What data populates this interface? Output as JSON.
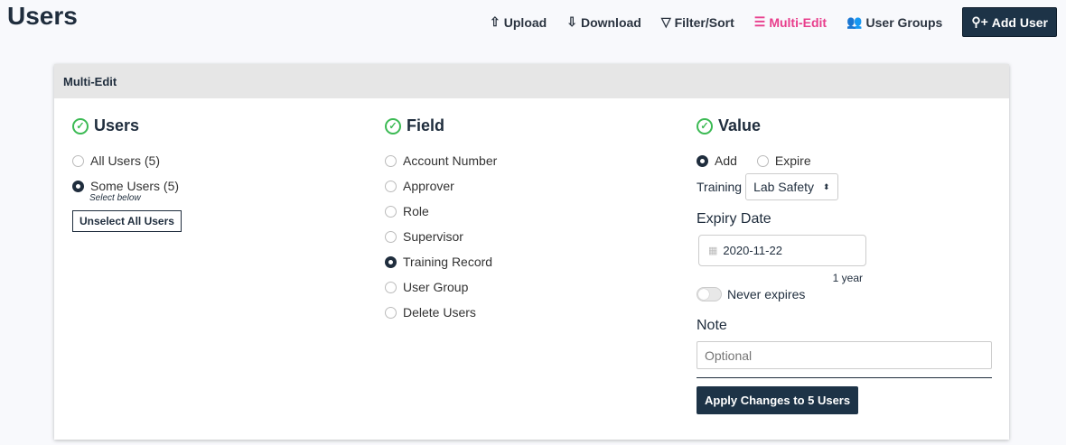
{
  "page_title": "Users",
  "toolbar": {
    "upload": "Upload",
    "download": "Download",
    "filter": "Filter/Sort",
    "multi_edit": "Multi-Edit",
    "user_groups": "User Groups",
    "add_user": "Add User",
    "accent": "#e83e8c"
  },
  "card": {
    "title": "Multi-Edit",
    "users": {
      "heading": "Users",
      "options": [
        "All Users (5)",
        "Some Users (5)"
      ],
      "selected": 1,
      "hint": "Select below",
      "unselect": "Unselect All Users"
    },
    "field": {
      "heading": "Field",
      "options": [
        "Account Number",
        "Approver",
        "Role",
        "Supervisor",
        "Training Record",
        "User Group",
        "Delete Users"
      ],
      "selected": 4
    },
    "value": {
      "heading": "Value",
      "modes": [
        "Add",
        "Expire"
      ],
      "selected": 0,
      "training_label": "Training",
      "training_value": "Lab Safety",
      "expiry_label": "Expiry Date",
      "expiry_value": "2020-11-22",
      "duration": "1 year",
      "never_expires": "Never expires",
      "never_expires_on": false,
      "note_label": "Note",
      "note_placeholder": "Optional",
      "apply": "Apply Changes to 5 Users"
    }
  }
}
